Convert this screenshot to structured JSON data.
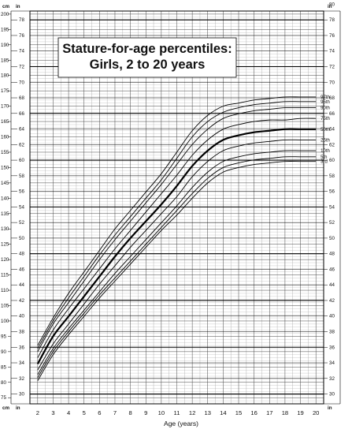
{
  "chart_data": {
    "type": "line",
    "title": "Stature-for-age percentiles:",
    "subtitle": "Girls, 2 to 20 years",
    "xlabel": "Age (years)",
    "left_unit": "cm",
    "right_unit": "in",
    "xlim": [
      1.5,
      20.5
    ],
    "ylim_cm": [
      73,
      201
    ],
    "x_ticks": [
      2,
      3,
      4,
      5,
      6,
      7,
      8,
      9,
      10,
      11,
      12,
      13,
      14,
      15,
      16,
      17,
      18,
      19,
      20
    ],
    "cm_ticks": [
      75,
      80,
      85,
      90,
      95,
      100,
      105,
      110,
      115,
      120,
      125,
      130,
      135,
      140,
      145,
      150,
      155,
      160,
      165,
      170,
      175,
      180,
      185,
      190,
      195,
      200
    ],
    "in_ticks": [
      30,
      32,
      34,
      36,
      38,
      40,
      42,
      44,
      46,
      48,
      50,
      52,
      54,
      56,
      58,
      60,
      62,
      64,
      66,
      68,
      70,
      72,
      74,
      76,
      78
    ],
    "in_ticks_right_extra": [
      80
    ],
    "x": [
      2,
      3,
      4,
      5,
      6,
      7,
      8,
      9,
      10,
      11,
      12,
      13,
      14,
      15,
      16,
      17,
      18,
      19,
      20
    ],
    "series": [
      {
        "name": "97th",
        "bold": false,
        "values": [
          92,
          101,
          109,
          116,
          123,
          130,
          136,
          142,
          148,
          155,
          162,
          167,
          170,
          171,
          172,
          172.5,
          173,
          173,
          173
        ]
      },
      {
        "name": "95th",
        "bold": false,
        "values": [
          91,
          100,
          107.5,
          114.5,
          121.5,
          128,
          134,
          140,
          146,
          153,
          160,
          165,
          168,
          169.5,
          170.5,
          171,
          171.5,
          171.5,
          171.5
        ]
      },
      {
        "name": "90th",
        "bold": false,
        "values": [
          90,
          99,
          106,
          113,
          120,
          126.5,
          132.5,
          138.5,
          144.5,
          151,
          157.5,
          162.5,
          166,
          167.5,
          168.5,
          169,
          169.5,
          169.5,
          169.5
        ]
      },
      {
        "name": "75th",
        "bold": false,
        "values": [
          88,
          97,
          104,
          110.5,
          117,
          123.5,
          129.5,
          135.5,
          141.5,
          147.5,
          154,
          159,
          162.5,
          164,
          165,
          165.5,
          165.5,
          166,
          166
        ]
      },
      {
        "name": "50th",
        "bold": true,
        "values": [
          86,
          95,
          101.5,
          108,
          114.5,
          121,
          127,
          132.5,
          138,
          144,
          150.5,
          155.5,
          159,
          160.5,
          161.5,
          162,
          162.5,
          162.5,
          162.5
        ]
      },
      {
        "name": "25th",
        "bold": false,
        "values": [
          84,
          92.5,
          99,
          105.5,
          112,
          118,
          124,
          129.5,
          135,
          140.5,
          147,
          152,
          155.5,
          157,
          158,
          158.5,
          159,
          159,
          159
        ]
      },
      {
        "name": "10th",
        "bold": false,
        "values": [
          82.5,
          91,
          97.5,
          103.5,
          109.5,
          115.5,
          121,
          126.5,
          132,
          137.5,
          143.5,
          148.5,
          152,
          153.5,
          154.5,
          155,
          155.5,
          155.5,
          155.5
        ]
      },
      {
        "name": "5th",
        "bold": false,
        "values": [
          81.5,
          90,
          96.5,
          102.5,
          108.5,
          114,
          119.5,
          125,
          130.5,
          136,
          141.5,
          146.5,
          150,
          151.5,
          152.5,
          153,
          153.5,
          153.5,
          153.5
        ]
      },
      {
        "name": "3rd",
        "bold": false,
        "values": [
          80.5,
          89,
          95.5,
          101.5,
          107.5,
          113,
          118.5,
          124,
          129.5,
          134.5,
          140,
          145,
          148.5,
          150,
          151,
          151.5,
          152,
          152,
          152
        ]
      }
    ]
  }
}
